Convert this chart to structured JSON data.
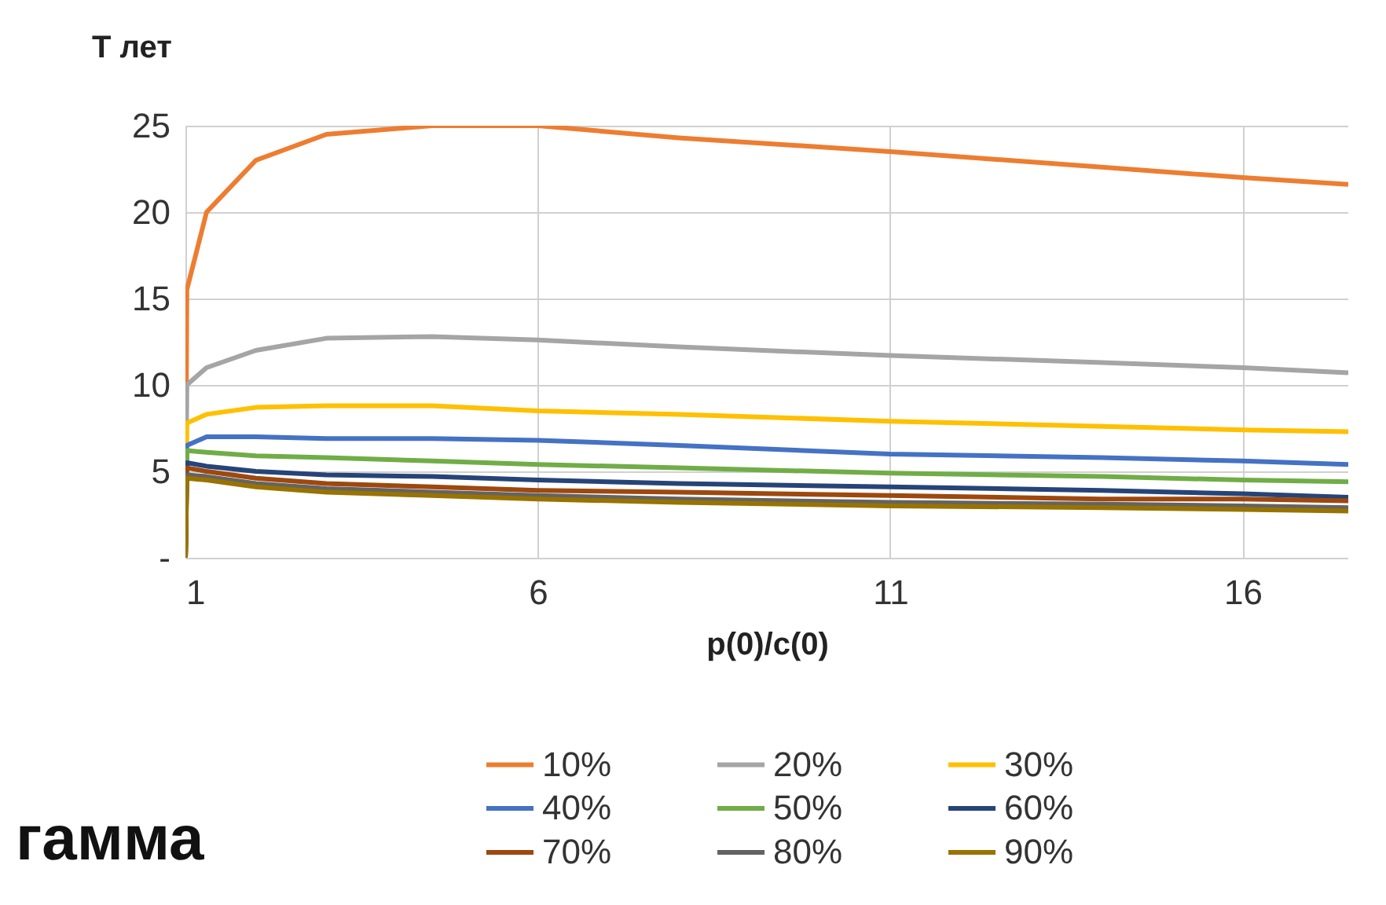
{
  "chart_data": {
    "type": "line",
    "xlabel": "p(0)/c(0)",
    "ylabel": "Т лет",
    "x": [
      1,
      1.02,
      1.3,
      2,
      3,
      4.5,
      6,
      8,
      11,
      14,
      16,
      17.5
    ],
    "series": [
      {
        "name": "10%",
        "color": "#ed7d31",
        "values": [
          0,
          15.5,
          20,
          23,
          24.5,
          25,
          25,
          24.3,
          23.5,
          22.6,
          22,
          21.6
        ]
      },
      {
        "name": "20%",
        "color": "#a5a5a5",
        "values": [
          0,
          10,
          11,
          12,
          12.7,
          12.8,
          12.6,
          12.2,
          11.7,
          11.3,
          11,
          10.7
        ]
      },
      {
        "name": "30%",
        "color": "#ffc000",
        "values": [
          0,
          7.8,
          8.3,
          8.7,
          8.8,
          8.8,
          8.5,
          8.3,
          7.9,
          7.6,
          7.4,
          7.3
        ]
      },
      {
        "name": "40%",
        "color": "#4472c4",
        "values": [
          0,
          6.5,
          7,
          7,
          6.9,
          6.9,
          6.8,
          6.5,
          6,
          5.8,
          5.6,
          5.4
        ]
      },
      {
        "name": "50%",
        "color": "#70ad47",
        "values": [
          0,
          6.2,
          6.1,
          5.9,
          5.8,
          5.6,
          5.4,
          5.2,
          4.9,
          4.7,
          4.5,
          4.4
        ]
      },
      {
        "name": "60%",
        "color": "#264478",
        "values": [
          0,
          5.5,
          5.3,
          5.0,
          4.8,
          4.7,
          4.5,
          4.3,
          4.1,
          3.9,
          3.7,
          3.5
        ]
      },
      {
        "name": "70%",
        "color": "#9e480e",
        "values": [
          0,
          5.2,
          5.0,
          4.6,
          4.3,
          4.1,
          3.9,
          3.8,
          3.6,
          3.4,
          3.4,
          3.3
        ]
      },
      {
        "name": "80%",
        "color": "#636363",
        "values": [
          0,
          4.8,
          4.7,
          4.3,
          4.0,
          3.8,
          3.6,
          3.4,
          3.2,
          3.1,
          3.0,
          2.9
        ]
      },
      {
        "name": "90%",
        "color": "#997300",
        "values": [
          0,
          4.6,
          4.5,
          4.1,
          3.8,
          3.6,
          3.4,
          3.2,
          3.0,
          2.9,
          2.8,
          2.7
        ]
      }
    ],
    "xlim": [
      1,
      17.5
    ],
    "xticks": [
      1,
      6,
      11,
      16
    ],
    "ylim": [
      0,
      25
    ],
    "yticks": [
      {
        "value": 0,
        "label": "-"
      },
      5,
      10,
      15,
      20,
      25
    ],
    "grid": true,
    "legend": "bottom",
    "marker": "none",
    "line_style": "solid",
    "annotations": [
      "гамма"
    ]
  }
}
